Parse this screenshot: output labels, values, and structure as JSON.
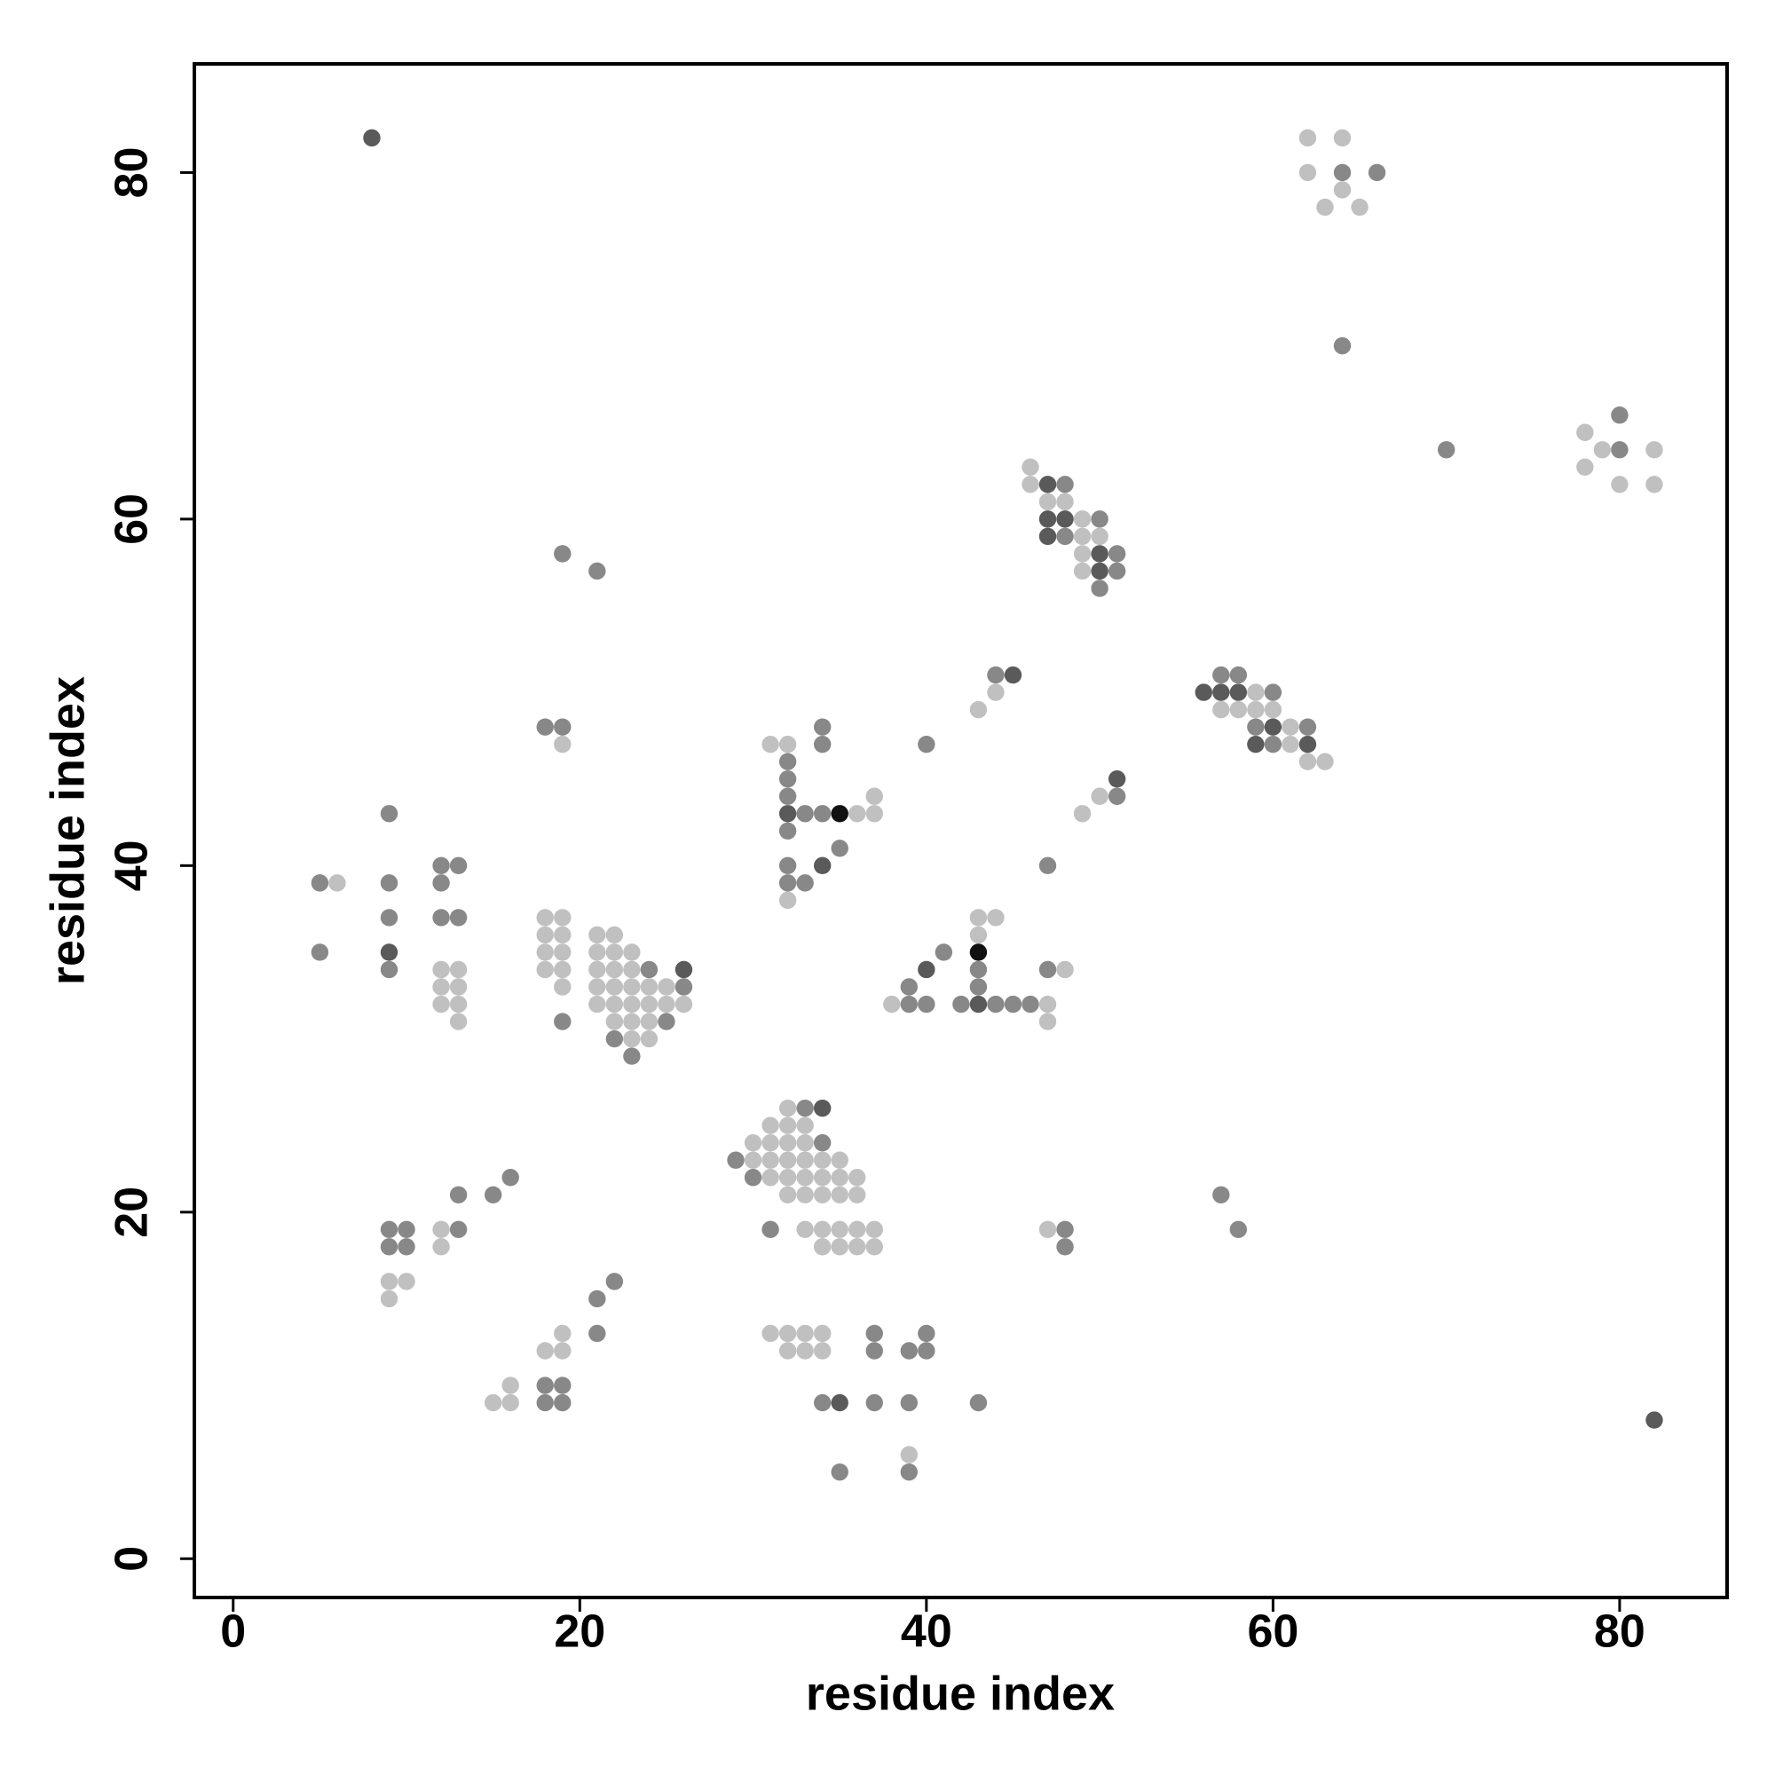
{
  "chart_data": {
    "type": "scatter",
    "x_label": "residue index",
    "y_label": "residue index",
    "xlim": [
      -2.24,
      86.2
    ],
    "ylim": [
      -2.24,
      86.27
    ],
    "xticks": [
      0,
      20,
      40,
      60,
      80
    ],
    "yticks": [
      0,
      20,
      40,
      60,
      80
    ],
    "series": [
      {
        "color": "#c0c0c0",
        "x": [
          62,
          64,
          62,
          64,
          63,
          65,
          78,
          79,
          82,
          78,
          80,
          82,
          46,
          46,
          47,
          48,
          49,
          49,
          50,
          49,
          49,
          44,
          43,
          59,
          57,
          58,
          59,
          60,
          61,
          61,
          62,
          63,
          19,
          31,
          32,
          36,
          37,
          37,
          32,
          50,
          49,
          6,
          12,
          13,
          12,
          13,
          12,
          13,
          13,
          18,
          19,
          18,
          19,
          18,
          19,
          18,
          19,
          19,
          21,
          22,
          21,
          22,
          23,
          21,
          22,
          23,
          21,
          22,
          23,
          24,
          25,
          21,
          22,
          23,
          24,
          25,
          26,
          22,
          23,
          24,
          23,
          24,
          43,
          44,
          43,
          38,
          47,
          47,
          48,
          32,
          31,
          32,
          33,
          30,
          31,
          32,
          33,
          30,
          31,
          32,
          33,
          34,
          35,
          31,
          32,
          33,
          34,
          35,
          36,
          32,
          33,
          34,
          35,
          36,
          12,
          12,
          33,
          34,
          35,
          36,
          37,
          34,
          35,
          36,
          37,
          47,
          9,
          10,
          9,
          19,
          18,
          19,
          16,
          15,
          16,
          31,
          32,
          33,
          34,
          32,
          33,
          34,
          39
        ],
        "y": [
          82,
          82,
          80,
          79,
          78,
          78,
          65,
          64,
          64,
          63,
          62,
          62,
          63,
          62,
          61,
          61,
          60,
          59,
          59,
          58,
          57,
          50,
          49,
          50,
          49,
          49,
          49,
          49,
          48,
          47,
          46,
          46,
          47,
          47,
          47,
          43,
          43,
          44,
          38,
          44,
          43,
          39,
          34,
          34,
          33,
          33,
          32,
          32,
          31,
          37,
          37,
          36,
          36,
          35,
          35,
          34,
          34,
          33,
          36,
          36,
          35,
          35,
          35,
          34,
          34,
          34,
          33,
          33,
          33,
          33,
          33,
          32,
          32,
          32,
          32,
          32,
          32,
          31,
          31,
          31,
          30,
          30,
          37,
          37,
          36,
          32,
          32,
          31,
          34,
          26,
          25,
          25,
          25,
          24,
          24,
          24,
          24,
          23,
          23,
          23,
          23,
          23,
          23,
          22,
          22,
          22,
          22,
          22,
          22,
          21,
          21,
          21,
          21,
          21,
          19,
          18,
          19,
          19,
          19,
          19,
          19,
          18,
          18,
          18,
          18,
          19,
          16,
          16,
          15,
          13,
          12,
          12,
          10,
          9,
          9,
          13,
          13,
          13,
          13,
          12,
          12,
          12,
          6
        ]
      },
      {
        "color": "#888888",
        "x": [
          64,
          66,
          64,
          80,
          80,
          70,
          48,
          50,
          48,
          51,
          51,
          50,
          19,
          21,
          44,
          57,
          58,
          60,
          59,
          62,
          60,
          18,
          19,
          32,
          34,
          34,
          32,
          32,
          33,
          34,
          32,
          35,
          32,
          32,
          33,
          40,
          51,
          9,
          12,
          13,
          12,
          5,
          9,
          9,
          12,
          13,
          5,
          9,
          47,
          19,
          24,
          26,
          25,
          22,
          23,
          41,
          43,
          39,
          43,
          39,
          40,
          42,
          44,
          45,
          46,
          47,
          33,
          34,
          29,
          30,
          16,
          15,
          13,
          57,
          58,
          9,
          10,
          9,
          10,
          13,
          31,
          48,
          48,
          21,
          22,
          21,
          18,
          19,
          18,
          19,
          37,
          37,
          39,
          40,
          40,
          34,
          37,
          39,
          43,
          39,
          35
        ],
        "y": [
          80,
          80,
          70,
          66,
          64,
          64,
          62,
          60,
          59,
          58,
          57,
          56,
          58,
          57,
          51,
          51,
          51,
          50,
          48,
          48,
          47,
          48,
          48,
          46,
          48,
          47,
          45,
          44,
          43,
          43,
          42,
          41,
          40,
          39,
          39,
          47,
          44,
          43,
          40,
          40,
          39,
          39,
          39,
          37,
          37,
          37,
          35,
          34,
          40,
          31,
          34,
          33,
          31,
          30,
          29,
          35,
          34,
          33,
          33,
          32,
          32,
          32,
          32,
          32,
          32,
          34,
          26,
          24,
          23,
          22,
          22,
          21,
          21,
          21,
          19,
          19,
          19,
          18,
          18,
          19,
          19,
          19,
          18,
          15,
          16,
          13,
          10,
          10,
          9,
          9,
          13,
          12,
          12,
          12,
          13,
          9,
          9,
          9,
          9,
          5,
          5
        ]
      },
      {
        "color": "#5a5a5a",
        "x": [
          8,
          47,
          47,
          48,
          47,
          50,
          50,
          45,
          56,
          57,
          58,
          60,
          59,
          62,
          32,
          34,
          51,
          9,
          26,
          40,
          43,
          34,
          35,
          82
        ],
        "y": [
          82,
          62,
          60,
          60,
          59,
          58,
          57,
          51,
          50,
          50,
          50,
          48,
          47,
          47,
          43,
          40,
          45,
          35,
          34,
          34,
          32,
          26,
          9,
          8
        ]
      },
      {
        "color": "#111111",
        "x": [
          35,
          43
        ],
        "y": [
          43,
          35
        ]
      }
    ]
  }
}
